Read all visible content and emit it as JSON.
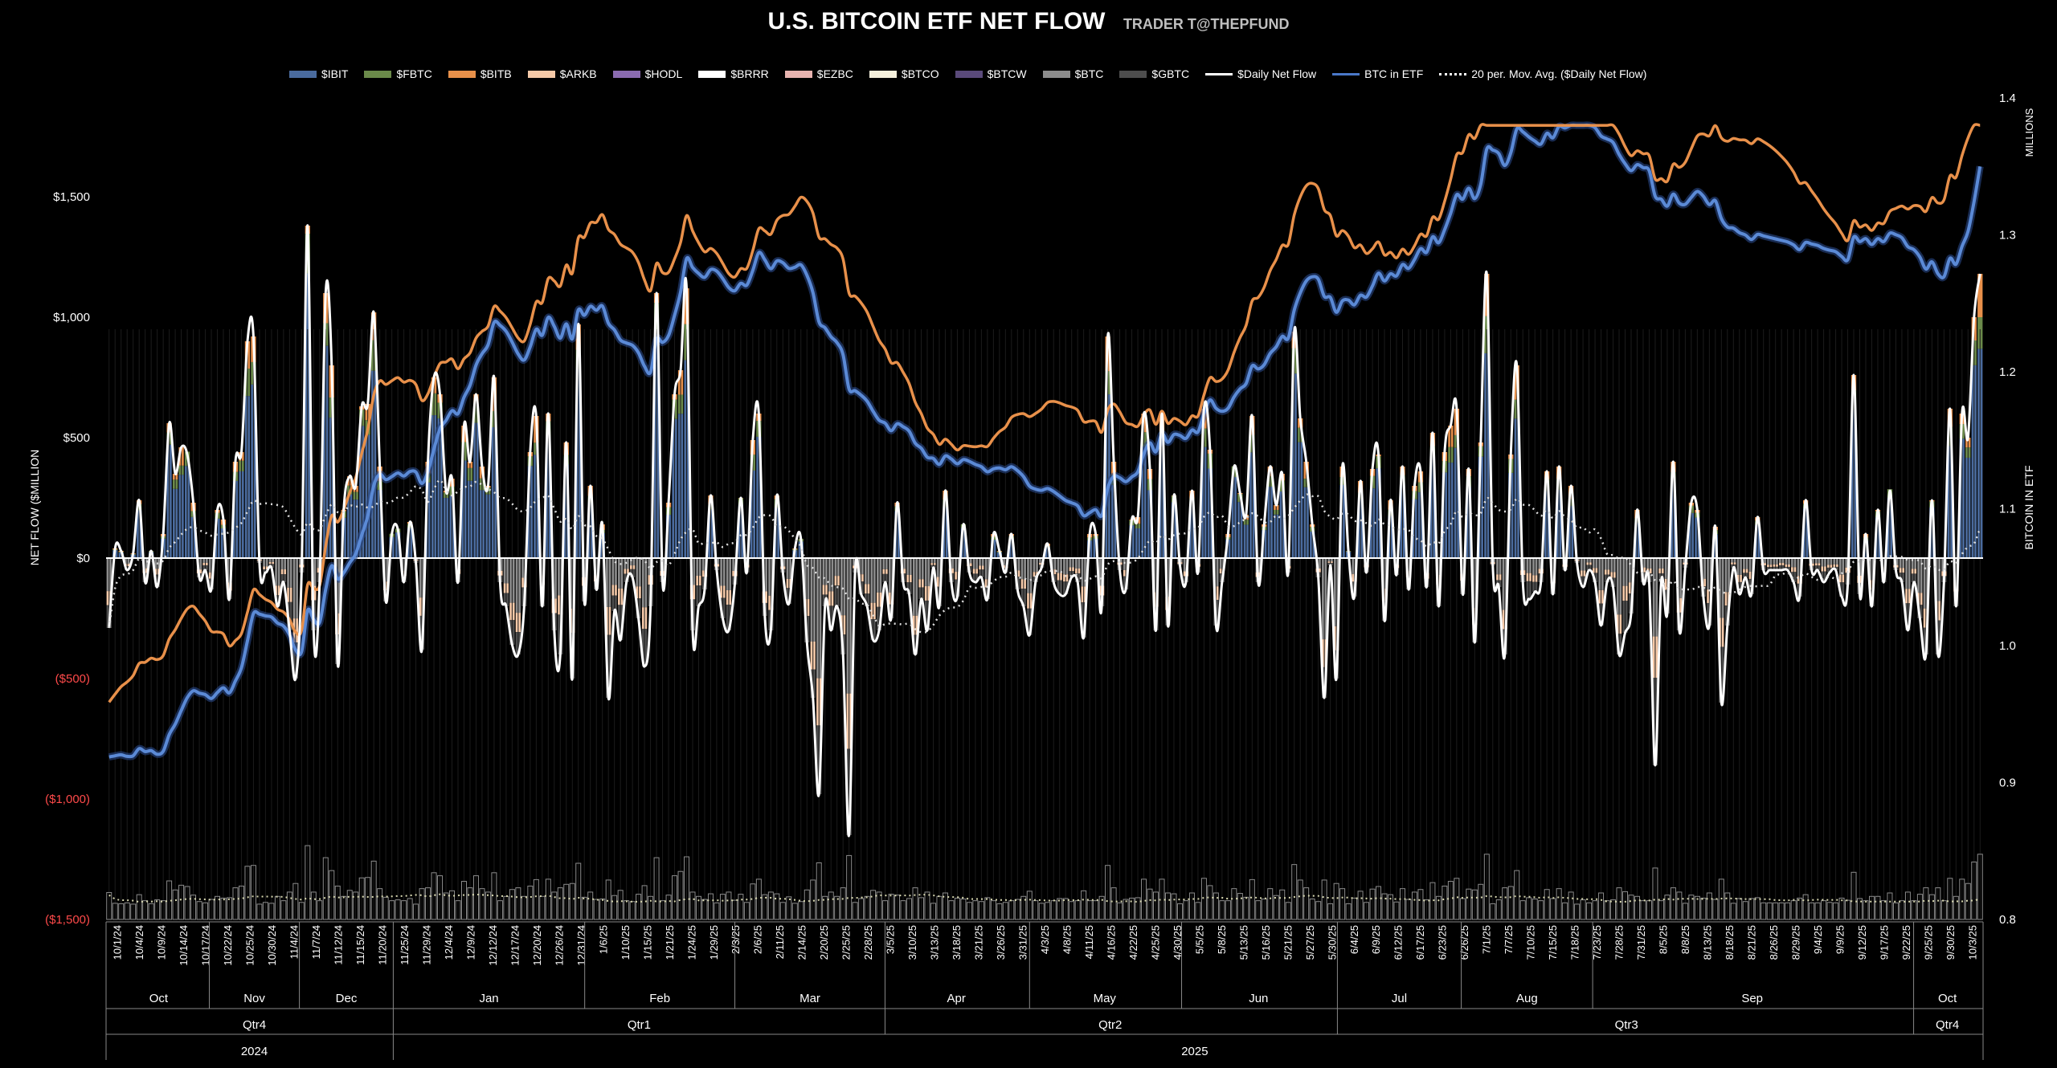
{
  "title": "U.S. BITCOIN ETF NET FLOW",
  "subtitle": "TRADER T@THEPFUND",
  "legend": [
    {
      "label": "$IBIT",
      "color": "#4a6b9e",
      "kind": "bar"
    },
    {
      "label": "$FBTC",
      "color": "#6b8a4a",
      "kind": "bar"
    },
    {
      "label": "$BITB",
      "color": "#e8904a",
      "kind": "bar"
    },
    {
      "label": "$ARKB",
      "color": "#f5c9a8",
      "kind": "bar"
    },
    {
      "label": "$HODL",
      "color": "#8a6bb0",
      "kind": "bar"
    },
    {
      "label": "$BRRR",
      "color": "#ffffff",
      "kind": "bar"
    },
    {
      "label": "$EZBC",
      "color": "#e8b4b0",
      "kind": "bar"
    },
    {
      "label": "$BTCO",
      "color": "#f5f0dc",
      "kind": "bar"
    },
    {
      "label": "$BTCW",
      "color": "#5a4a7a",
      "kind": "bar"
    },
    {
      "label": "$BTC",
      "color": "#8c8c8c",
      "kind": "bar"
    },
    {
      "label": "$GBTC",
      "color": "#4d4d4d",
      "kind": "bar"
    },
    {
      "label": "$Daily Net Flow",
      "color": "#ffffff",
      "kind": "line"
    },
    {
      "label": "BTC in ETF",
      "color": "#4a78c8",
      "kind": "line"
    },
    {
      "label": "20 per. Mov. Avg. ($Daily Net Flow)",
      "color": "#ffffff",
      "kind": "dotted"
    }
  ],
  "y_left_ticks": [
    "$1,500",
    "$1,000",
    "$500",
    "$0",
    "($500)",
    "($1,000)",
    "($1,500)"
  ],
  "y_left_label": "NET FLOW ($MILLION",
  "y_right_ticks": [
    "1.4",
    "1.3",
    "1.2",
    "1.1",
    "1.0",
    "0.9",
    "0.8"
  ],
  "y_right_label": "BITCOIN IN ETF",
  "y_right_unit": "MILLIONS",
  "x_date_labels": [
    "10/1/24",
    "10/4/24",
    "10/9/24",
    "10/14/24",
    "10/17/24",
    "10/22/24",
    "10/25/24",
    "10/30/24",
    "11/4/24",
    "11/7/24",
    "11/12/24",
    "11/15/24",
    "11/20/24",
    "11/25/24",
    "11/29/24",
    "12/4/24",
    "12/9/24",
    "12/12/24",
    "12/17/24",
    "12/20/24",
    "12/26/24",
    "12/31/24",
    "1/6/25",
    "1/10/25",
    "1/15/25",
    "1/21/25",
    "1/24/25",
    "1/29/25",
    "2/3/25",
    "2/6/25",
    "2/11/25",
    "2/14/25",
    "2/20/25",
    "2/25/25",
    "2/28/25",
    "3/5/25",
    "3/10/25",
    "3/13/25",
    "3/18/25",
    "3/21/25",
    "3/26/25",
    "3/31/25",
    "4/3/25",
    "4/8/25",
    "4/11/25",
    "4/16/25",
    "4/22/25",
    "4/25/25",
    "4/30/25",
    "5/5/25",
    "5/8/25",
    "5/13/25",
    "5/16/25",
    "5/21/25",
    "5/27/25",
    "5/30/25",
    "6/4/25",
    "6/9/25",
    "6/12/25",
    "6/17/25",
    "6/23/25",
    "6/26/25",
    "7/1/25",
    "7/7/25",
    "7/10/25",
    "7/15/25",
    "7/18/25",
    "7/23/25",
    "7/28/25",
    "7/31/25",
    "8/5/25",
    "8/8/25",
    "8/13/25",
    "8/18/25",
    "8/21/25",
    "8/26/25",
    "8/29/25",
    "9/4/25",
    "9/9/25",
    "9/12/25",
    "9/17/25",
    "9/22/25",
    "9/25/25",
    "9/30/25",
    "10/3/25"
  ],
  "months": [
    "Oct",
    "Nov",
    "Dec",
    "Jan",
    "Feb",
    "Mar",
    "Apr",
    "May",
    "Jun",
    "Jul",
    "Aug",
    "Sep",
    "Oct"
  ],
  "quarters": [
    "Qtr4",
    "Qtr1",
    "Qtr2",
    "Qtr3",
    "Qtr4"
  ],
  "years": [
    "2024",
    "2025"
  ],
  "chart_data": {
    "type": "bar",
    "title": "U.S. BITCOIN ETF NET FLOW",
    "left_axis": {
      "label": "NET FLOW ($MILLION",
      "range": [
        -1500,
        1500
      ]
    },
    "right_axis": {
      "label": "BITCOIN IN ETF",
      "unit": "MILLIONS",
      "range": [
        0.8,
        1.4
      ]
    },
    "grid": false,
    "legend_position": "top",
    "daily_net_flow": [
      -290,
      40,
      30,
      -50,
      20,
      240,
      -100,
      30,
      -120,
      100,
      560,
      350,
      460,
      430,
      230,
      -80,
      -50,
      -130,
      200,
      160,
      -170,
      400,
      440,
      900,
      920,
      -20,
      -60,
      -40,
      -200,
      -100,
      -300,
      -500,
      -60,
      1380,
      -300,
      -100,
      1100,
      800,
      -440,
      200,
      340,
      300,
      630,
      640,
      1020,
      380,
      -180,
      100,
      120,
      -100,
      150,
      -20,
      -380,
      400,
      750,
      680,
      280,
      330,
      -100,
      550,
      400,
      680,
      380,
      300,
      750,
      -100,
      -200,
      -360,
      -400,
      -200,
      440,
      590,
      -200,
      600,
      -300,
      -400,
      480,
      -500,
      970,
      -180,
      300,
      -130,
      140,
      -580,
      -220,
      -340,
      -100,
      -80,
      -250,
      -450,
      -200,
      1100,
      -100,
      230,
      680,
      780,
      1120,
      -300,
      -200,
      -130,
      260,
      -50,
      -250,
      -300,
      -110,
      250,
      -60,
      490,
      600,
      -240,
      -300,
      260,
      -60,
      -190,
      40,
      80,
      -350,
      -580,
      -980,
      -200,
      -300,
      -200,
      -400,
      -1150,
      -60,
      -150,
      -200,
      -340,
      -300,
      -100,
      -250,
      230,
      -100,
      -150,
      -400,
      -170,
      -300,
      -40,
      -200,
      280,
      -100,
      -160,
      140,
      -60,
      -100,
      -80,
      -170,
      100,
      30,
      -60,
      100,
      -130,
      -200,
      -320,
      -100,
      -40,
      60,
      -100,
      -150,
      -150,
      -80,
      -100,
      -330,
      100,
      100,
      -200,
      920,
      400,
      -50,
      -130,
      160,
      170,
      600,
      370,
      -300,
      600,
      -280,
      260,
      -30,
      -100,
      280,
      -60,
      620,
      450,
      -280,
      -100,
      100,
      380,
      270,
      180,
      590,
      -100,
      140,
      380,
      220,
      350,
      -60,
      940,
      580,
      400,
      140,
      -80,
      -580,
      -30,
      -500,
      380,
      30,
      -160,
      320,
      -60,
      370,
      430,
      -260,
      240,
      -70,
      380,
      -130,
      300,
      360,
      -120,
      520,
      -200,
      440,
      550,
      620,
      -150,
      370,
      -350,
      480,
      1180,
      -30,
      -120,
      -400,
      430,
      800,
      -100,
      -170,
      -140,
      -100,
      360,
      -150,
      380,
      -50,
      300,
      -20,
      -120,
      -50,
      -100,
      -280,
      -100,
      -120,
      -400,
      -310,
      -230,
      200,
      -100,
      -100,
      -860,
      -100,
      -230,
      400,
      -300,
      -40,
      230,
      200,
      -160,
      -280,
      130,
      -600,
      -280,
      -40,
      -150,
      -80,
      -150,
      170,
      -50,
      -50,
      -50,
      -50,
      -50,
      -100,
      -160,
      240,
      -50,
      -50,
      -100,
      -60,
      -50,
      -160,
      -110,
      760,
      -150,
      100,
      -200,
      200,
      -100,
      280,
      -50,
      -100,
      -300,
      -100,
      -250,
      -400,
      240,
      -400,
      -100,
      620,
      -200,
      600,
      500,
      1000,
      1180
    ]
  }
}
